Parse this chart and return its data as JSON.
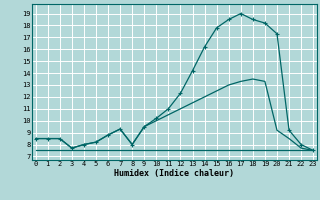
{
  "title": "",
  "xlabel": "Humidex (Indice chaleur)",
  "bg_color": "#b2d8d8",
  "grid_color": "#ffffff",
  "line_color": "#006666",
  "x_ticks": [
    0,
    1,
    2,
    3,
    4,
    5,
    6,
    7,
    8,
    9,
    10,
    11,
    12,
    13,
    14,
    15,
    16,
    17,
    18,
    19,
    20,
    21,
    22,
    23
  ],
  "y_ticks": [
    7,
    8,
    9,
    10,
    11,
    12,
    13,
    14,
    15,
    16,
    17,
    18,
    19
  ],
  "xlim": [
    -0.3,
    23.3
  ],
  "ylim": [
    6.7,
    19.8
  ],
  "series1_x": [
    0,
    1,
    2,
    3,
    4,
    5,
    6,
    7,
    8,
    9,
    10,
    11,
    12,
    13,
    14,
    15,
    16,
    17,
    18,
    19,
    20,
    21,
    22,
    23
  ],
  "series1_y": [
    8.5,
    8.5,
    8.5,
    7.7,
    8.0,
    8.2,
    8.8,
    9.3,
    8.0,
    9.5,
    10.0,
    10.5,
    11.0,
    11.5,
    12.0,
    12.5,
    13.0,
    13.3,
    13.5,
    13.3,
    9.2,
    8.5,
    7.7,
    7.5
  ],
  "series2_x": [
    0,
    1,
    2,
    3,
    4,
    5,
    6,
    7,
    8,
    9,
    10,
    11,
    12,
    13,
    14,
    15,
    16,
    17,
    18,
    19,
    20,
    21,
    22,
    23
  ],
  "series2_y": [
    8.5,
    8.5,
    8.5,
    7.7,
    8.0,
    8.2,
    8.8,
    9.3,
    8.0,
    9.5,
    10.2,
    11.0,
    12.3,
    14.2,
    16.2,
    17.8,
    18.5,
    19.0,
    18.5,
    18.2,
    17.3,
    9.2,
    8.0,
    7.5
  ],
  "series3_x": [
    0,
    1,
    2,
    3,
    4,
    5,
    6,
    7,
    8,
    9,
    10,
    11,
    12,
    13,
    14,
    15,
    16,
    17,
    18,
    19,
    20,
    21,
    22,
    23
  ],
  "series3_y": [
    7.5,
    7.5,
    7.5,
    7.5,
    7.5,
    7.5,
    7.5,
    7.5,
    7.5,
    7.5,
    7.5,
    7.5,
    7.5,
    7.5,
    7.5,
    7.5,
    7.5,
    7.5,
    7.5,
    7.5,
    7.5,
    7.5,
    7.5,
    7.5
  ],
  "xlabel_fontsize": 6.0,
  "tick_fontsize": 5.0,
  "linewidth": 0.9,
  "marker_size": 3.5
}
